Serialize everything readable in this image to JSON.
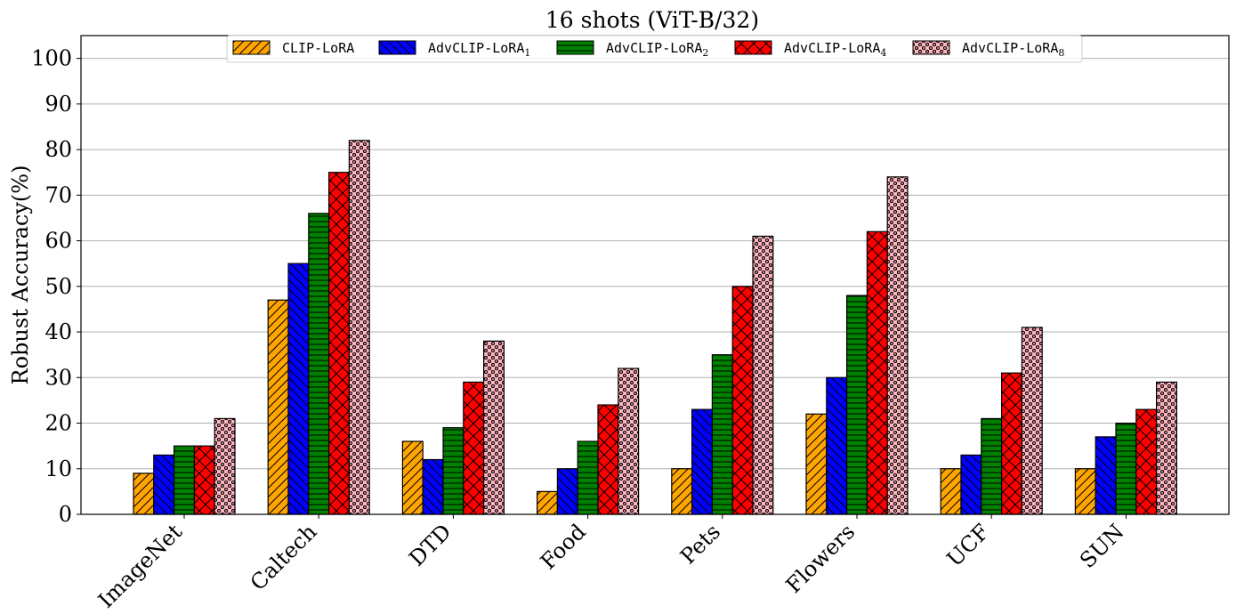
{
  "chart_data": {
    "type": "bar",
    "title": "16 shots (ViT-B/32)",
    "ylabel": "Robust Accuracy(%)",
    "xlabel": "",
    "ylim": [
      0,
      105
    ],
    "yticks": [
      0,
      10,
      20,
      30,
      40,
      50,
      60,
      70,
      80,
      90,
      100
    ],
    "grid": "horizontal",
    "legend_position": "top-center",
    "categories": [
      "ImageNet",
      "Caltech",
      "DTD",
      "Food",
      "Pets",
      "Flowers",
      "UCF",
      "SUN"
    ],
    "series": [
      {
        "name": "CLIP-LoRA",
        "sub": "",
        "color": "#ffa500",
        "hatch": "forward-diagonal",
        "values": [
          9,
          47,
          16,
          5,
          10,
          22,
          10,
          10
        ]
      },
      {
        "name": "AdvCLIP-LoRA",
        "sub": "1",
        "color": "#0000ff",
        "hatch": "back-diagonal",
        "values": [
          13,
          55,
          12,
          10,
          23,
          30,
          13,
          17
        ]
      },
      {
        "name": "AdvCLIP-LoRA",
        "sub": "2",
        "color": "#008000",
        "hatch": "horizontal",
        "values": [
          15,
          66,
          19,
          16,
          35,
          48,
          21,
          20
        ]
      },
      {
        "name": "AdvCLIP-LoRA",
        "sub": "4",
        "color": "#ff0000",
        "hatch": "cross-diagonal",
        "values": [
          15,
          75,
          29,
          24,
          50,
          62,
          31,
          23
        ]
      },
      {
        "name": "AdvCLIP-LoRA",
        "sub": "8",
        "color": "#ffb6c1",
        "hatch": "small-circles",
        "values": [
          21,
          82,
          38,
          32,
          61,
          74,
          41,
          29
        ]
      }
    ]
  }
}
